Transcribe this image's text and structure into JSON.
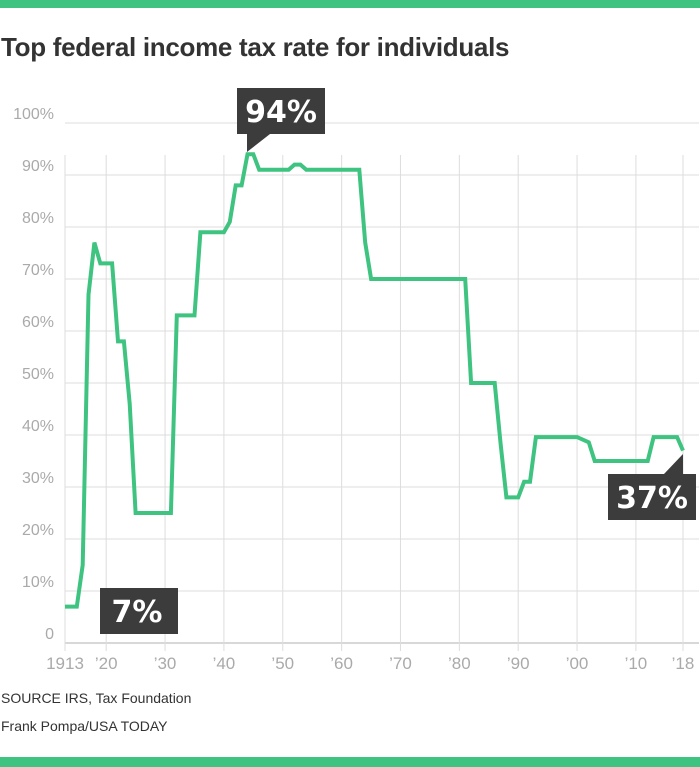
{
  "colors": {
    "accent": "#3fc380",
    "line": "#3fc380",
    "callout_bg": "#3c3c3c",
    "callout_text": "#ffffff",
    "grid": "#dddddd",
    "tick_text": "#aaaaaa",
    "title_text": "#333333"
  },
  "chart_data": {
    "type": "line",
    "title": "Top federal income tax rate for individuals",
    "xlabel": "",
    "ylabel": "",
    "xlim": [
      1913,
      2018
    ],
    "ylim": [
      0,
      100
    ],
    "grid": true,
    "x_ticks": [
      {
        "value": 1913,
        "label": "1913"
      },
      {
        "value": 1920,
        "label": "’20"
      },
      {
        "value": 1930,
        "label": "’30"
      },
      {
        "value": 1940,
        "label": "’40"
      },
      {
        "value": 1950,
        "label": "’50"
      },
      {
        "value": 1960,
        "label": "’60"
      },
      {
        "value": 1970,
        "label": "’70"
      },
      {
        "value": 1980,
        "label": "’80"
      },
      {
        "value": 1990,
        "label": "’90"
      },
      {
        "value": 2000,
        "label": "’00"
      },
      {
        "value": 2010,
        "label": "’10"
      },
      {
        "value": 2018,
        "label": "’18"
      }
    ],
    "y_ticks": [
      {
        "value": 0,
        "label": "0"
      },
      {
        "value": 10,
        "label": "10%"
      },
      {
        "value": 20,
        "label": "20%"
      },
      {
        "value": 30,
        "label": "30%"
      },
      {
        "value": 40,
        "label": "40%"
      },
      {
        "value": 50,
        "label": "50%"
      },
      {
        "value": 60,
        "label": "60%"
      },
      {
        "value": 70,
        "label": "70%"
      },
      {
        "value": 80,
        "label": "80%"
      },
      {
        "value": 90,
        "label": "90%"
      },
      {
        "value": 100,
        "label": "100%"
      }
    ],
    "series": [
      {
        "name": "Top federal income tax rate",
        "points": [
          [
            1913,
            7
          ],
          [
            1915,
            7
          ],
          [
            1916,
            15
          ],
          [
            1917,
            67
          ],
          [
            1918,
            77
          ],
          [
            1919,
            73
          ],
          [
            1921,
            73
          ],
          [
            1922,
            58
          ],
          [
            1923,
            58
          ],
          [
            1924,
            46
          ],
          [
            1925,
            25
          ],
          [
            1931,
            25
          ],
          [
            1932,
            63
          ],
          [
            1935,
            63
          ],
          [
            1936,
            79
          ],
          [
            1940,
            79
          ],
          [
            1941,
            81
          ],
          [
            1942,
            88
          ],
          [
            1943,
            88
          ],
          [
            1944,
            94
          ],
          [
            1945,
            94
          ],
          [
            1946,
            91
          ],
          [
            1951,
            91
          ],
          [
            1952,
            92
          ],
          [
            1953,
            92
          ],
          [
            1954,
            91
          ],
          [
            1963,
            91
          ],
          [
            1964,
            77
          ],
          [
            1965,
            70
          ],
          [
            1981,
            70
          ],
          [
            1982,
            50
          ],
          [
            1986,
            50
          ],
          [
            1987,
            38.5
          ],
          [
            1988,
            28
          ],
          [
            1990,
            28
          ],
          [
            1991,
            31
          ],
          [
            1992,
            31
          ],
          [
            1993,
            39.6
          ],
          [
            2000,
            39.6
          ],
          [
            2001,
            39.1
          ],
          [
            2002,
            38.6
          ],
          [
            2003,
            35
          ],
          [
            2012,
            35
          ],
          [
            2013,
            39.6
          ],
          [
            2017,
            39.6
          ],
          [
            2018,
            37
          ]
        ]
      }
    ],
    "annotations": [
      {
        "label": "7%",
        "x": 1913,
        "y": 7
      },
      {
        "label": "94%",
        "x": 1944,
        "y": 94
      },
      {
        "label": "37%",
        "x": 2018,
        "y": 37
      }
    ]
  },
  "footer": {
    "source": "SOURCE IRS, Tax Foundation",
    "credit": "Frank Pompa/USA TODAY"
  }
}
